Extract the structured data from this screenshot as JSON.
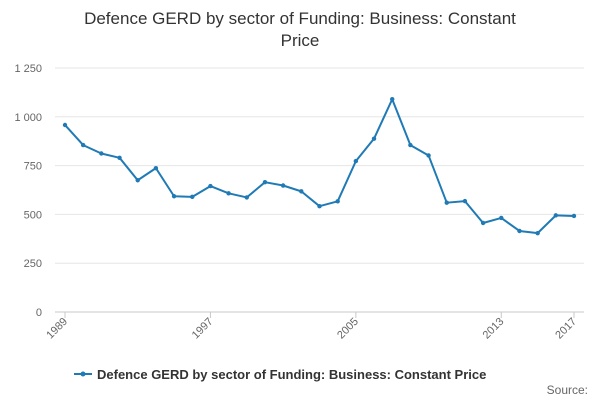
{
  "chart_data": {
    "type": "line",
    "title_lines": [
      "Defence GERD by sector of Funding: Business: Constant",
      "Price"
    ],
    "xlabel": "",
    "ylabel": "",
    "x": [
      1989,
      1990,
      1991,
      1992,
      1993,
      1994,
      1995,
      1996,
      1997,
      1998,
      1999,
      2000,
      2001,
      2002,
      2003,
      2004,
      2005,
      2006,
      2007,
      2008,
      2009,
      2010,
      2011,
      2012,
      2013,
      2014,
      2015,
      2016,
      2017
    ],
    "x_tick_labels": [
      "1989",
      "1997",
      "2005",
      "2013",
      "2017"
    ],
    "y_tick_labels": [
      "0",
      "250",
      "500",
      "750",
      "1 000",
      "1 250"
    ],
    "ylim": [
      0,
      1250
    ],
    "xlim": [
      1989,
      2017
    ],
    "grid": true,
    "legend_position": "bottom",
    "series": [
      {
        "name": "Defence GERD by sector of Funding: Business: Constant Price",
        "color": "#1f7ab5",
        "values": [
          958,
          855,
          812,
          790,
          675,
          737,
          593,
          590,
          645,
          608,
          587,
          665,
          648,
          618,
          542,
          567,
          773,
          888,
          1090,
          855,
          802,
          560,
          568,
          456,
          482,
          415,
          404,
          495,
          492
        ]
      }
    ]
  },
  "footer": {
    "source_label": "Source:"
  }
}
